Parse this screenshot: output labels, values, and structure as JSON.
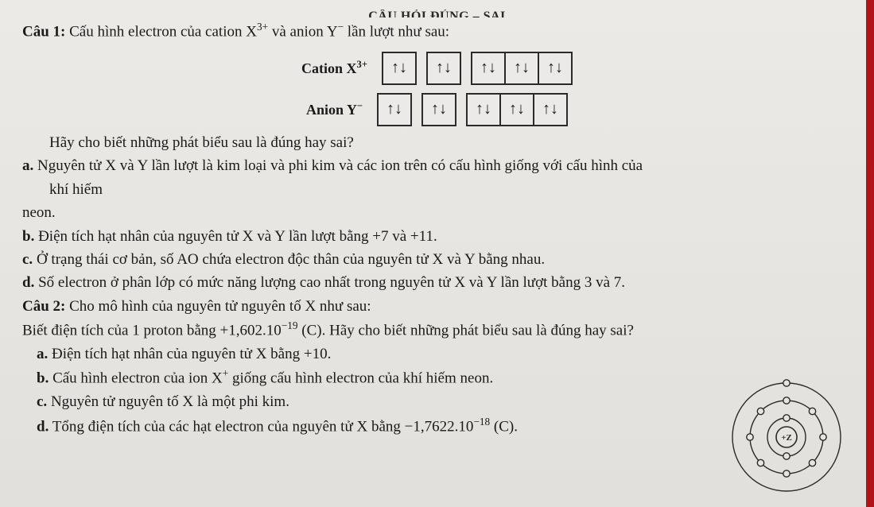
{
  "header_cut_text": "CÂU HỎI ĐÚNG – SAI",
  "q1": {
    "label": "Câu 1:",
    "stem_before_X": "Cấu hình electron của cation X",
    "x_sup": "3+",
    "stem_mid": " và anion Y",
    "y_sup": "−",
    "stem_after": " lần lượt như sau:",
    "cation_label_prefix": "Cation X",
    "cation_label_sup": "3+",
    "anion_label_prefix": "Anion Y",
    "anion_label_sup": "−",
    "arrow_pair": "↑↓",
    "ask": "Hãy cho biết những phát biểu sau là đúng hay sai?",
    "a_label": "a.",
    "a_text_1": "Nguyên tử X và Y lần lượt là kim loại và phi kim và các ion trên có cấu hình giống với cấu hình của",
    "a_text_2": "khí hiếm",
    "a_text_3": "neon.",
    "b_label": "b.",
    "b_text": "Điện tích hạt nhân của nguyên tử X và Y lần lượt bằng +7 và +11.",
    "c_label": "c.",
    "c_text": "Ở trạng thái cơ bản, số AO chứa electron độc thân của nguyên tử X và Y bằng nhau.",
    "d_label": "d.",
    "d_text": "Số electron ở phân lớp có mức năng lượng cao nhất trong nguyên tử X và Y lần lượt bằng 3 và 7."
  },
  "q2": {
    "label": "Câu 2:",
    "stem": "Cho mô hình của nguyên tử nguyên tố X như sau:",
    "line2_before": "Biết điện tích của 1 proton bằng +1,602.10",
    "line2_sup": "−19",
    "line2_after": " (C). Hãy cho biết những phát biểu sau là đúng hay sai?",
    "a_label": "a.",
    "a_text": "Điện tích hạt nhân của nguyên tử X bằng +10.",
    "b_label": "b.",
    "b_text_before": "Cấu hình electron của ion X",
    "b_sup": "+",
    "b_text_after": " giống cấu hình electron của khí hiếm neon.",
    "c_label": "c.",
    "c_text": "Nguyên tử nguyên tố X là một phi kim.",
    "d_label": "d.",
    "d_text_before": "Tổng điện tích của các hạt electron của nguyên tử X bằng −1,7622.10",
    "d_sup": "−18",
    "d_text_after": " (C)."
  },
  "atom": {
    "nucleus_label": "+Z",
    "stroke": "#2a2a2a",
    "fill_bg": "#e6e4e1",
    "electron_fill": "#e6e4e1",
    "shells": [
      {
        "r": 24,
        "electrons": [
          [
            0,
            -24
          ],
          [
            0,
            24
          ]
        ]
      },
      {
        "r": 46,
        "electrons": [
          [
            0,
            -46
          ],
          [
            32.5,
            -32.5
          ],
          [
            46,
            0
          ],
          [
            32.5,
            32.5
          ],
          [
            0,
            46
          ],
          [
            -32.5,
            32.5
          ],
          [
            -46,
            0
          ],
          [
            -32.5,
            -32.5
          ]
        ]
      },
      {
        "r": 68,
        "electrons": [
          [
            0,
            -68
          ]
        ]
      }
    ]
  }
}
